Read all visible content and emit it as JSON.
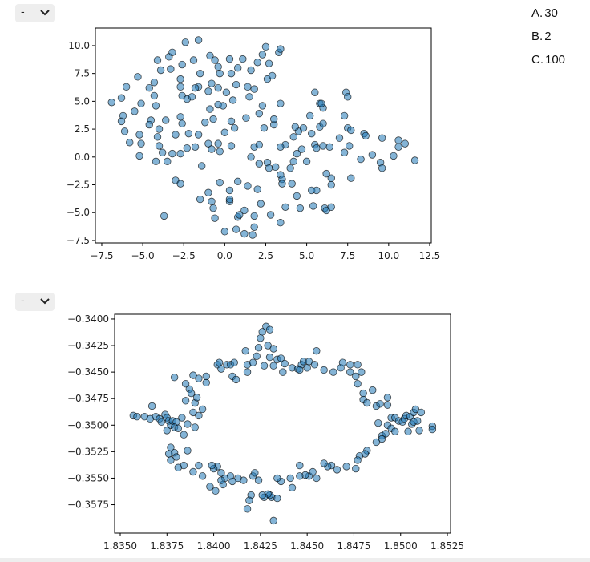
{
  "dropdowns": [
    {
      "value": "-"
    },
    {
      "value": "-"
    }
  ],
  "options": [
    {
      "letter": "A.",
      "text": "30"
    },
    {
      "letter": "B.",
      "text": "2"
    },
    {
      "letter": "C.",
      "text": "100"
    }
  ],
  "chart_data": [
    {
      "type": "scatter",
      "color": "#1f77b4",
      "xlim": [
        -7.89,
        12.6
      ],
      "ylim": [
        -7.72,
        11.58
      ],
      "xticks": [
        {
          "value": -7.5,
          "label": "−7.5"
        },
        {
          "value": -5,
          "label": "−5.0"
        },
        {
          "value": -2.5,
          "label": "−2.5"
        },
        {
          "value": 0,
          "label": "0.0"
        },
        2.5,
        {
          "value": 5,
          "label": "5.0"
        },
        7.5,
        {
          "value": 10,
          "label": "10.0"
        },
        12.5
      ],
      "yticks": [
        {
          "value": -7.5,
          "label": "−7.5"
        },
        {
          "value": -5,
          "label": "−5.0"
        },
        {
          "value": -2.5,
          "label": "−2.5"
        },
        {
          "value": 0,
          "label": "0.0"
        },
        2.5,
        {
          "value": 5,
          "label": "5.0"
        },
        7.5,
        {
          "value": 10,
          "label": "10.0"
        }
      ],
      "x": [
        -6.9,
        -6.3,
        -6.0,
        -5.3,
        -6.2,
        -6.3,
        -6.1,
        -5.8,
        -5.5,
        -5.1,
        -5.2,
        -5.1,
        -5.2,
        -4.6,
        -4.3,
        -4.1,
        -4.3,
        -4.2,
        -4.5,
        -4.6,
        -4.0,
        -4.1,
        -4.0,
        -4.2,
        -3.8,
        -3.6,
        -3.9,
        -3.4,
        -3.2,
        -3.3,
        -2.7,
        -2.6,
        -2.4,
        -1.6,
        -1.9,
        -3.5,
        -3.2,
        -3.0,
        -2.7,
        -2.6,
        -2.2,
        -2.3,
        -2.7,
        -2.6,
        -2.3,
        -2.7,
        -2.0,
        -1.6,
        -1.8,
        -1.5,
        -0.9,
        -0.6,
        -0.8,
        -0.4,
        -1.0,
        -0.9,
        -0.4,
        -0.1,
        -1.2,
        -1.6,
        -1.8,
        -1.0,
        -0.8,
        -0.3,
        -0.4,
        -1.4,
        0.0,
        0.4,
        0.4,
        -0.7,
        -3.0,
        -2.7,
        -3.7,
        -1.5,
        -1.0,
        -0.8,
        -0.7,
        -0.6,
        -0.3,
        0.0,
        0.7,
        1.2,
        1.8,
        1.7,
        0.8,
        0.9,
        1.2,
        0.3,
        0.3,
        0.8,
        0.3,
        1.4,
        1.8,
        2.2,
        2.0,
        2.1,
        2.6,
        1.8,
        1.3,
        1.6,
        0.6,
        2.8,
        2.7,
        3.1,
        3.4,
        3.5,
        3.5,
        3.4,
        3.7,
        4.1,
        4.6,
        4.4,
        4.0,
        5.3,
        5.4,
        5.6,
        6.1,
        6.2,
        6.5,
        6.5,
        6.5,
        6.2,
        7.7,
        5.0,
        4.2,
        4.7,
        4.4,
        4.2,
        4.5,
        4.3,
        4.8,
        5.3,
        5.5,
        5.6,
        5.8,
        5.2,
        5.8,
        6.0,
        6.0,
        6.0,
        6.4,
        3.7,
        3.4,
        3.4,
        3.0,
        3.0,
        2.4,
        2.1,
        2.3,
        2.1,
        2.6,
        2.9,
        3.3,
        3.4,
        2.5,
        2.7,
        2.3,
        2.0,
        1.6,
        1.1,
        0.8,
        0.3,
        0.4,
        0.7,
        1.4,
        1.8,
        1.5,
        0.5,
        0.1,
        -0.3,
        -0.4,
        7.4,
        7.5,
        7.3,
        7.5,
        7.7,
        7.6,
        7.0,
        7.3,
        8.5,
        8.6,
        8.3,
        9.0,
        9.6,
        9.5,
        9.6,
        10.3,
        10.6,
        10.6,
        11.0,
        11.6,
        5.5,
        5.9
      ],
      "values": [
        4.9,
        5.3,
        6.3,
        7.2,
        3.7,
        3.2,
        2.3,
        1.3,
        4.1,
        4.8,
        2.0,
        1.2,
        0.1,
        6.2,
        6.7,
        8.7,
        5.5,
        4.6,
        3.3,
        2.9,
        2.5,
        1.8,
        1.0,
        -0.4,
        0.4,
        3.3,
        7.8,
        9.0,
        9.4,
        7.9,
        7.0,
        8.3,
        10.3,
        10.5,
        8.7,
        -0.4,
        0.3,
        2.0,
        3.6,
        3.0,
        2.1,
        0.8,
        0.3,
        5.5,
        5.2,
        6.3,
        5.4,
        6.3,
        6.2,
        7.5,
        9.1,
        8.7,
        6.6,
        6.2,
        5.9,
        4.3,
        4.7,
        4.6,
        3.1,
        2.0,
        0.9,
        1.2,
        0.7,
        0.5,
        1.2,
        -0.8,
        2.2,
        1.0,
        3.2,
        3.4,
        -2.1,
        -2.4,
        -5.3,
        -3.8,
        -3.2,
        -4.0,
        -4.6,
        -5.5,
        -2.3,
        -6.7,
        -6.5,
        -6.9,
        -6.3,
        -7.0,
        -5.4,
        -5.2,
        -4.8,
        -4.0,
        -3.8,
        -2.2,
        -3.0,
        -2.6,
        -5.3,
        -4.2,
        -2.9,
        -0.6,
        -0.5,
        0.9,
        3.5,
        0.0,
        2.6,
        -5.2,
        -1.0,
        -0.9,
        -1.6,
        -2.0,
        -2.4,
        -5.9,
        -4.5,
        -2.4,
        -4.6,
        -3.5,
        -1.0,
        -3.0,
        -4.4,
        -3.0,
        -4.6,
        -4.8,
        -4.5,
        -1.9,
        -2.5,
        -1.5,
        -1.9,
        -0.4,
        -0.4,
        0.7,
        0.3,
        1.8,
        2.3,
        2.7,
        2.6,
        2.1,
        1.1,
        0.8,
        2.7,
        3.7,
        4.8,
        4.4,
        3.0,
        1.0,
        0.9,
        1.1,
        4.8,
        0.9,
        2.9,
        3.4,
        2.6,
        3.9,
        4.6,
        1.1,
        7.0,
        7.3,
        9.4,
        9.7,
        9.9,
        8.4,
        9.2,
        8.5,
        7.8,
        8.8,
        8.0,
        8.8,
        7.5,
        6.5,
        6.3,
        6.1,
        5.4,
        5.1,
        5.8,
        7.5,
        8.1,
        5.8,
        5.4,
        3.7,
        2.6,
        2.4,
        1.0,
        1.7,
        0.4,
        2.1,
        1.9,
        -0.2,
        0.2,
        1.7,
        -0.5,
        -1.0,
        0.1,
        1.5,
        0.9,
        1.2,
        -0.3,
        5.8,
        4.8
      ]
    },
    {
      "type": "scatter",
      "color": "#1f77b4",
      "xlim": [
        1.8347,
        1.85267
      ],
      "ylim": [
        -0.36018,
        -0.33955
      ],
      "xticks": [
        {
          "value": 1.835,
          "label": "1.8350"
        },
        1.8375,
        {
          "value": 1.84,
          "label": "1.8400"
        },
        1.8425,
        {
          "value": 1.845,
          "label": "1.8450"
        },
        1.8475,
        {
          "value": 1.85,
          "label": "1.8500"
        },
        1.8525
      ],
      "yticks": [
        {
          "value": -0.34,
          "label": "−0.3400"
        },
        {
          "value": -0.3425,
          "label": "−0.3425"
        },
        {
          "value": -0.345,
          "label": "−0.3450"
        },
        {
          "value": -0.3475,
          "label": "−0.3475"
        },
        {
          "value": -0.35,
          "label": "−0.3500"
        },
        {
          "value": -0.3525,
          "label": "−0.3525"
        },
        {
          "value": -0.355,
          "label": "−0.3550"
        },
        {
          "value": -0.3575,
          "label": "−0.3575"
        }
      ],
      "x": [
        1.8357,
        1.8359,
        1.8363,
        1.8366,
        1.8367,
        1.8369,
        1.8371,
        1.8372,
        1.8374,
        1.8375,
        1.8376,
        1.8377,
        1.8378,
        1.838,
        1.8379,
        1.8375,
        1.8381,
        1.8383,
        1.8386,
        1.8389,
        1.839,
        1.8384,
        1.8392,
        1.8379,
        1.8385,
        1.8387,
        1.8388,
        1.8385,
        1.839,
        1.8391,
        1.8392,
        1.8389,
        1.8394,
        1.8396,
        1.8396,
        1.8402,
        1.8404,
        1.8403,
        1.8407,
        1.8409,
        1.8411,
        1.841,
        1.8412,
        1.8417,
        1.8418,
        1.8418,
        1.8421,
        1.8423,
        1.8424,
        1.8425,
        1.8426,
        1.8428,
        1.843,
        1.8429,
        1.8427,
        1.843,
        1.8432,
        1.8432,
        1.8434,
        1.8436,
        1.8437,
        1.8438,
        1.8442,
        1.8445,
        1.8447,
        1.8448,
        1.8446,
        1.845,
        1.8451,
        1.8454,
        1.8455,
        1.8459,
        1.8464,
        1.8468,
        1.8469,
        1.8473,
        1.8473,
        1.8477,
        1.8479,
        1.8476,
        1.8477,
        1.848,
        1.848,
        1.8482,
        1.8485,
        1.8487,
        1.8489,
        1.8493,
        1.8493,
        1.8495,
        1.8497,
        1.8499,
        1.8501,
        1.8502,
        1.8503,
        1.8505,
        1.8507,
        1.8508,
        1.8511,
        1.851,
        1.8506,
        1.8504,
        1.8507,
        1.8517,
        1.8517,
        1.8509,
        1.8488,
        1.8493,
        1.8495,
        1.8497,
        1.849,
        1.8492,
        1.849,
        1.8487,
        1.8482,
        1.8481,
        1.8478,
        1.8477,
        1.8476,
        1.8471,
        1.8466,
        1.8463,
        1.8461,
        1.8459,
        1.8455,
        1.8451,
        1.8453,
        1.8449,
        1.8446,
        1.8446,
        1.8441,
        1.8442,
        1.8436,
        1.8434,
        1.8431,
        1.843,
        1.8429,
        1.8427,
        1.8434,
        1.8432,
        1.8426,
        1.8424,
        1.8421,
        1.842,
        1.8419,
        1.8418,
        1.8422,
        1.8416,
        1.8413,
        1.841,
        1.8409,
        1.8406,
        1.8405,
        1.8404,
        1.8402,
        1.84,
        1.8399,
        1.8404,
        1.8398,
        1.8401,
        1.8394,
        1.8392,
        1.8389,
        1.8384,
        1.8386,
        1.8377,
        1.8379,
        1.838,
        1.8376,
        1.8381,
        1.8377
      ],
      "values": [
        -0.3491,
        -0.3492,
        -0.3492,
        -0.3494,
        -0.3482,
        -0.3492,
        -0.3494,
        -0.3497,
        -0.349,
        -0.3493,
        -0.3496,
        -0.35,
        -0.3496,
        -0.3497,
        -0.3502,
        -0.3505,
        -0.3503,
        -0.3493,
        -0.3499,
        -0.3488,
        -0.3502,
        -0.3509,
        -0.3491,
        -0.3455,
        -0.3461,
        -0.3466,
        -0.347,
        -0.3477,
        -0.3479,
        -0.3474,
        -0.3456,
        -0.3453,
        -0.3485,
        -0.346,
        -0.3454,
        -0.3443,
        -0.3447,
        -0.3441,
        -0.3443,
        -0.3443,
        -0.3441,
        -0.3454,
        -0.3457,
        -0.343,
        -0.3443,
        -0.345,
        -0.3441,
        -0.3435,
        -0.3427,
        -0.3418,
        -0.3412,
        -0.3407,
        -0.341,
        -0.3425,
        -0.3444,
        -0.3436,
        -0.3428,
        -0.3444,
        -0.3438,
        -0.3437,
        -0.345,
        -0.3442,
        -0.3446,
        -0.3447,
        -0.3443,
        -0.344,
        -0.3448,
        -0.3446,
        -0.344,
        -0.3443,
        -0.343,
        -0.3448,
        -0.345,
        -0.3446,
        -0.3441,
        -0.3443,
        -0.345,
        -0.3443,
        -0.345,
        -0.3454,
        -0.3461,
        -0.347,
        -0.3476,
        -0.3479,
        -0.3467,
        -0.3482,
        -0.348,
        -0.3474,
        -0.3481,
        -0.3493,
        -0.3493,
        -0.3496,
        -0.3497,
        -0.3494,
        -0.3491,
        -0.3492,
        -0.3488,
        -0.3485,
        -0.3488,
        -0.3505,
        -0.3499,
        -0.3506,
        -0.3497,
        -0.3501,
        -0.3504,
        -0.3496,
        -0.3498,
        -0.35,
        -0.3503,
        -0.3506,
        -0.351,
        -0.3508,
        -0.3513,
        -0.3516,
        -0.3524,
        -0.3527,
        -0.3529,
        -0.3533,
        -0.3541,
        -0.3539,
        -0.3542,
        -0.3538,
        -0.3539,
        -0.3536,
        -0.355,
        -0.3548,
        -0.3544,
        -0.3547,
        -0.3548,
        -0.3538,
        -0.355,
        -0.3559,
        -0.3553,
        -0.355,
        -0.3568,
        -0.3566,
        -0.3565,
        -0.3568,
        -0.3569,
        -0.359,
        -0.3566,
        -0.3552,
        -0.3548,
        -0.3566,
        -0.3571,
        -0.3579,
        -0.3545,
        -0.3552,
        -0.355,
        -0.3553,
        -0.3548,
        -0.355,
        -0.3556,
        -0.3545,
        -0.3539,
        -0.3541,
        -0.3538,
        -0.3552,
        -0.3558,
        -0.3562,
        -0.3548,
        -0.3538,
        -0.3544,
        -0.3538,
        -0.3524,
        -0.3521,
        -0.3526,
        -0.353,
        -0.3527,
        -0.354,
        -0.3533
      ]
    }
  ]
}
